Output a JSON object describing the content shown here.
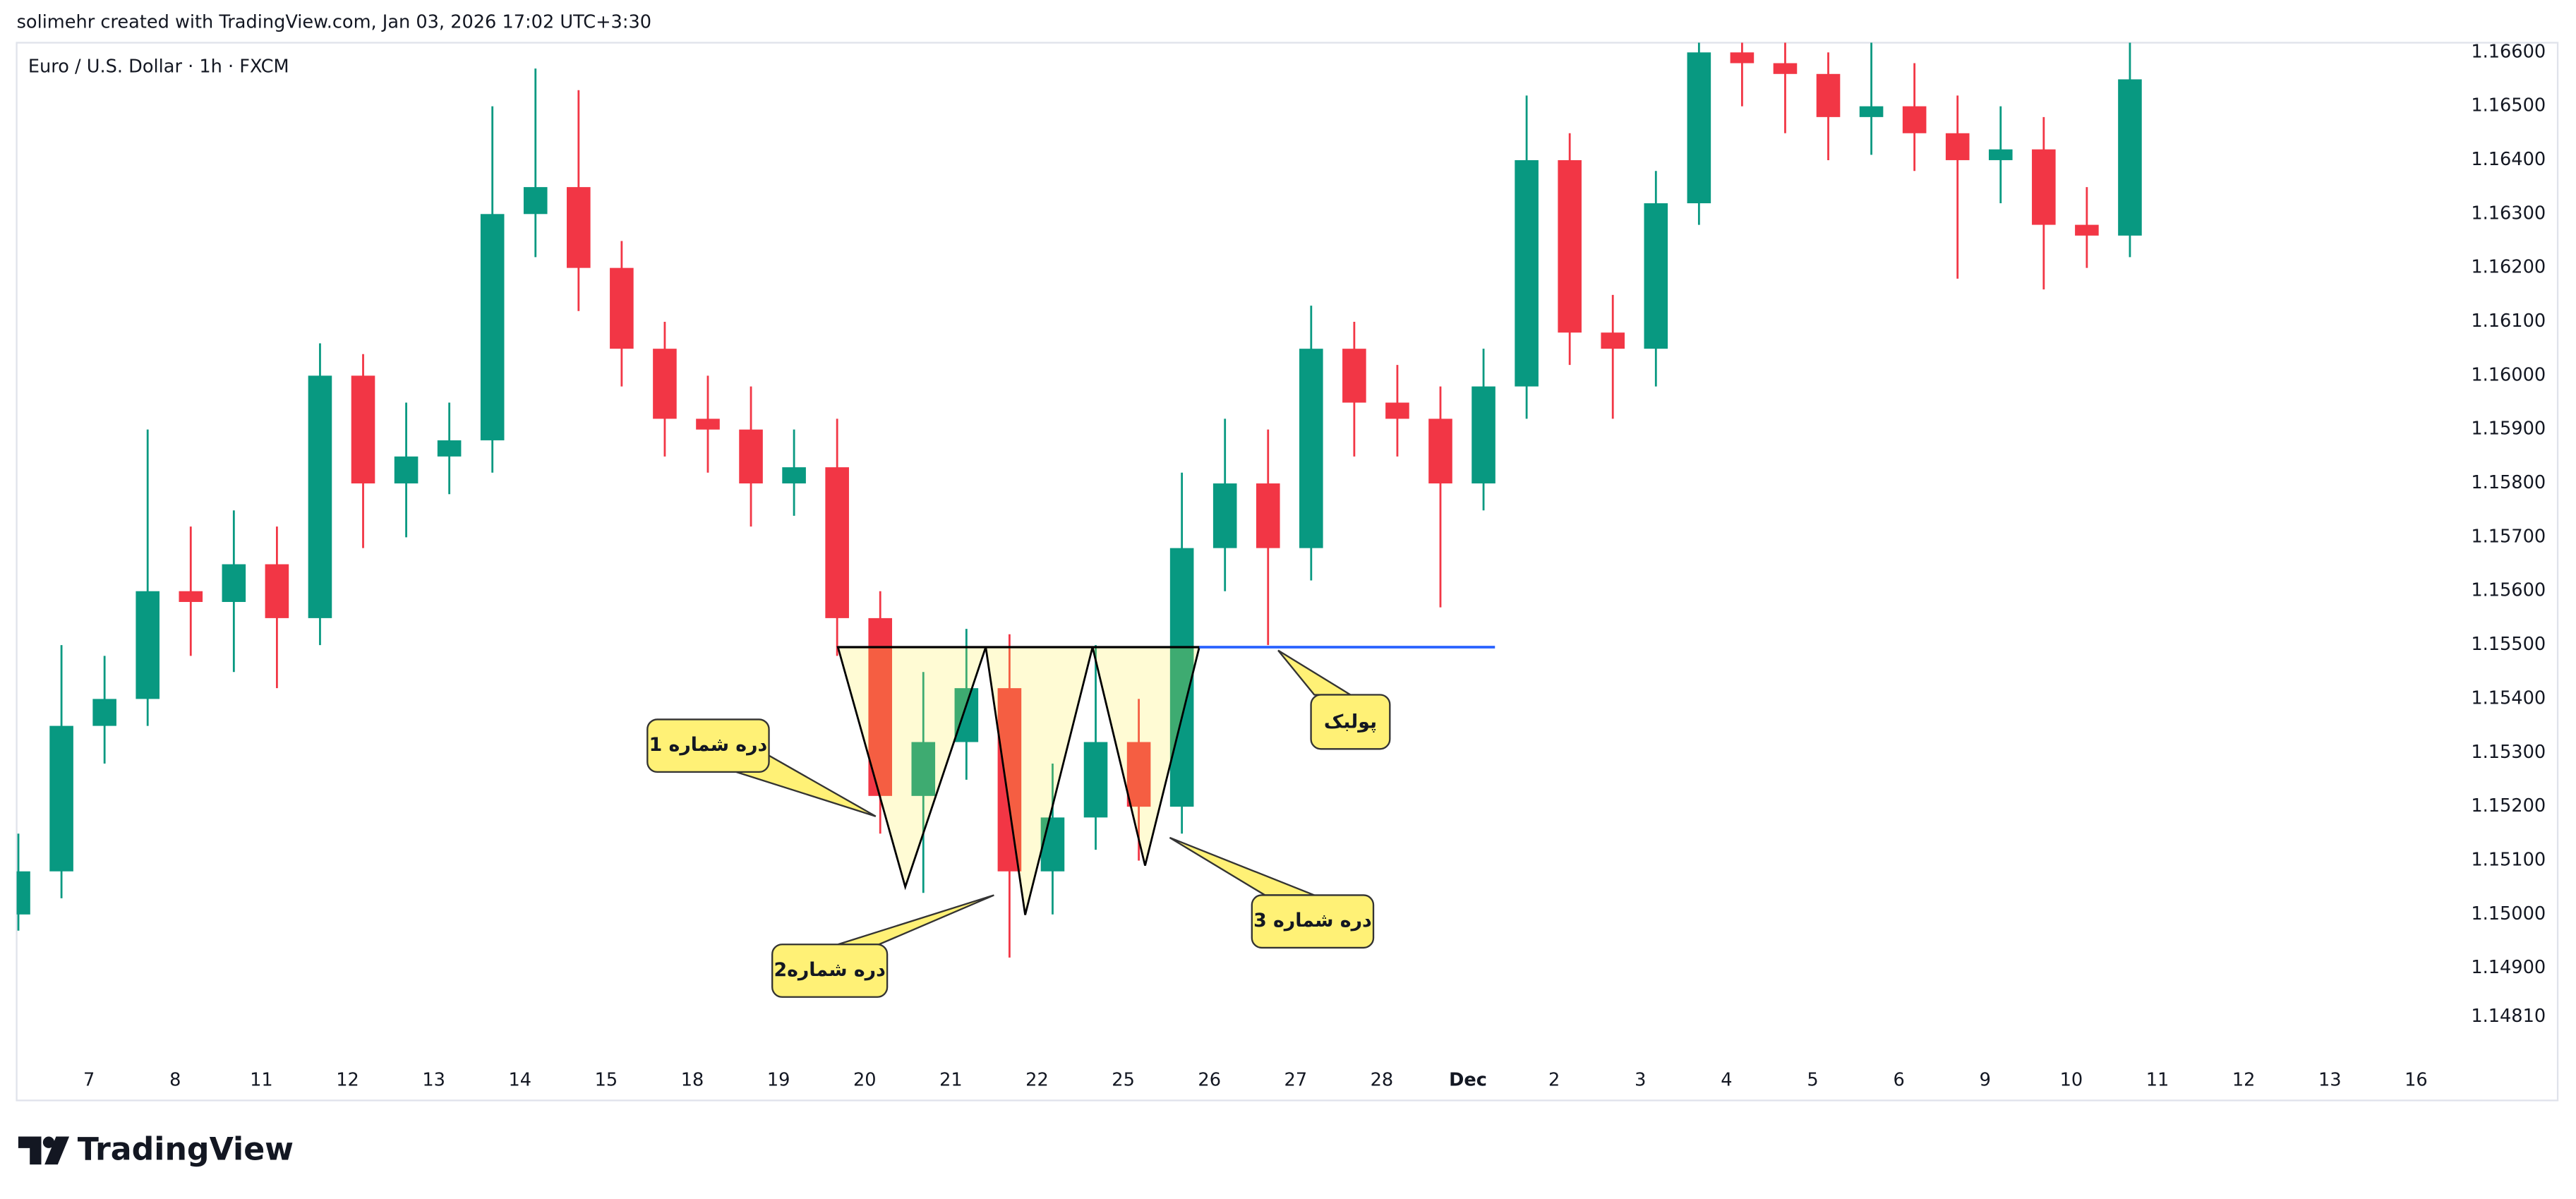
{
  "header": "solimehr created with TradingView.com, Jan 03, 2026 17:02 UTC+3:30",
  "brand": "TradingView",
  "chart_data": {
    "type": "candlestick",
    "title": "Euro / U.S. Dollar · 1h · FXCM",
    "up_color": "#089981",
    "down_color": "#f23645",
    "grid": false,
    "x": [
      -0.82,
      -0.32,
      0.18,
      0.68,
      1.18,
      1.68,
      2.18,
      2.68,
      3.18,
      3.68,
      4.18,
      4.68,
      5.18,
      5.68,
      6.18,
      6.68,
      7.18,
      7.68,
      8.18,
      8.68,
      9.18,
      9.68,
      10.18,
      10.68,
      11.18,
      11.68,
      12.18,
      12.68,
      13.18,
      13.68,
      14.18,
      14.68,
      15.18,
      15.68,
      16.18,
      16.68,
      17.18,
      17.68,
      18.18,
      18.68,
      19.18,
      19.68,
      20.18,
      20.68,
      21.18,
      21.68,
      22.18,
      22.68,
      23.18,
      23.68
    ],
    "open": [
      1.15,
      1.1508,
      1.1535,
      1.154,
      1.156,
      1.1558,
      1.1565,
      1.1555,
      1.16,
      1.158,
      1.1585,
      1.1588,
      1.163,
      1.1635,
      1.162,
      1.1605,
      1.1592,
      1.159,
      1.158,
      1.1583,
      1.1555,
      1.1522,
      1.1532,
      1.1542,
      1.1508,
      1.1518,
      1.1532,
      1.152,
      1.1568,
      1.158,
      1.1568,
      1.1605,
      1.1595,
      1.1592,
      1.158,
      1.1598,
      1.164,
      1.1608,
      1.1605,
      1.1632,
      1.166,
      1.1658,
      1.1656,
      1.1648,
      1.165,
      1.1645,
      1.164,
      1.1642,
      1.1628,
      1.1626
    ],
    "high": [
      1.1515,
      1.155,
      1.1548,
      1.159,
      1.1572,
      1.1575,
      1.1572,
      1.1606,
      1.1604,
      1.1595,
      1.1595,
      1.165,
      1.1657,
      1.1653,
      1.1625,
      1.161,
      1.16,
      1.1598,
      1.159,
      1.1592,
      1.156,
      1.1545,
      1.1553,
      1.1552,
      1.1528,
      1.155,
      1.154,
      1.1582,
      1.1592,
      1.159,
      1.1613,
      1.161,
      1.1602,
      1.1598,
      1.1605,
      1.1652,
      1.1645,
      1.1615,
      1.1638,
      1.1668,
      1.1666,
      1.1664,
      1.166,
      1.1662,
      1.1658,
      1.1652,
      1.165,
      1.1648,
      1.1635,
      1.1668
    ],
    "low": [
      1.1497,
      1.1503,
      1.1528,
      1.1535,
      1.1548,
      1.1545,
      1.1542,
      1.155,
      1.1568,
      1.157,
      1.1578,
      1.1582,
      1.1622,
      1.1612,
      1.1598,
      1.1585,
      1.1582,
      1.1572,
      1.1574,
      1.1548,
      1.1515,
      1.1504,
      1.1525,
      1.1492,
      1.15,
      1.1512,
      1.151,
      1.1515,
      1.156,
      1.155,
      1.1562,
      1.1585,
      1.1585,
      1.1557,
      1.1575,
      1.1592,
      1.1602,
      1.1592,
      1.1598,
      1.1628,
      1.165,
      1.1645,
      1.164,
      1.1641,
      1.1638,
      1.1618,
      1.1632,
      1.1616,
      1.162,
      1.1622
    ],
    "close": [
      1.1508,
      1.1535,
      1.154,
      1.156,
      1.1558,
      1.1565,
      1.1555,
      1.16,
      1.158,
      1.1585,
      1.1588,
      1.163,
      1.1635,
      1.162,
      1.1605,
      1.1592,
      1.159,
      1.158,
      1.1583,
      1.1555,
      1.1522,
      1.1532,
      1.1542,
      1.1508,
      1.1518,
      1.1532,
      1.152,
      1.1568,
      1.158,
      1.1568,
      1.1605,
      1.1595,
      1.1592,
      1.158,
      1.1598,
      1.164,
      1.1608,
      1.1605,
      1.1632,
      1.166,
      1.1658,
      1.1656,
      1.1648,
      1.165,
      1.1645,
      1.164,
      1.1642,
      1.1628,
      1.1626,
      1.1655
    ],
    "xlim": [
      -0.84,
      27.5
    ],
    "xticks": [
      {
        "value": 0,
        "label": "7"
      },
      {
        "value": 1,
        "label": "8"
      },
      {
        "value": 2,
        "label": "11"
      },
      {
        "value": 3,
        "label": "12"
      },
      {
        "value": 4,
        "label": "13"
      },
      {
        "value": 5,
        "label": "14"
      },
      {
        "value": 6,
        "label": "15"
      },
      {
        "value": 7,
        "label": "18"
      },
      {
        "value": 8,
        "label": "19"
      },
      {
        "value": 9,
        "label": "20"
      },
      {
        "value": 10,
        "label": "21"
      },
      {
        "value": 11,
        "label": "22"
      },
      {
        "value": 12,
        "label": "25"
      },
      {
        "value": 13,
        "label": "26"
      },
      {
        "value": 14,
        "label": "27"
      },
      {
        "value": 15,
        "label": "28"
      },
      {
        "value": 16,
        "label": "Dec"
      },
      {
        "value": 17,
        "label": "2"
      },
      {
        "value": 18,
        "label": "3"
      },
      {
        "value": 19,
        "label": "4"
      },
      {
        "value": 20,
        "label": "5"
      },
      {
        "value": 21,
        "label": "6"
      },
      {
        "value": 22,
        "label": "9"
      },
      {
        "value": 23,
        "label": "10"
      },
      {
        "value": 24,
        "label": "11"
      },
      {
        "value": 25,
        "label": "12"
      },
      {
        "value": 26,
        "label": "13"
      },
      {
        "value": 27,
        "label": "16"
      }
    ],
    "ylim": [
      1.14731,
      1.16618
    ],
    "yticks": [
      {
        "value": 1.166,
        "label": "1.16600"
      },
      {
        "value": 1.165,
        "label": "1.16500"
      },
      {
        "value": 1.164,
        "label": "1.16400"
      },
      {
        "value": 1.163,
        "label": "1.16300"
      },
      {
        "value": 1.162,
        "label": "1.16200"
      },
      {
        "value": 1.161,
        "label": "1.16100"
      },
      {
        "value": 1.16,
        "label": "1.16000"
      },
      {
        "value": 1.159,
        "label": "1.15900"
      },
      {
        "value": 1.158,
        "label": "1.15800"
      },
      {
        "value": 1.157,
        "label": "1.15700"
      },
      {
        "value": 1.156,
        "label": "1.15600"
      },
      {
        "value": 1.155,
        "label": "1.15500"
      },
      {
        "value": 1.154,
        "label": "1.15400"
      },
      {
        "value": 1.153,
        "label": "1.15300"
      },
      {
        "value": 1.152,
        "label": "1.15200"
      },
      {
        "value": 1.151,
        "label": "1.15100"
      },
      {
        "value": 1.15,
        "label": "1.15000"
      },
      {
        "value": 1.149,
        "label": "1.14900"
      },
      {
        "value": 1.1481,
        "label": "1.14810"
      }
    ],
    "annotations": [
      "دره شماره 1",
      "دره شماره2",
      "دره شماره 3",
      "پولبک"
    ]
  }
}
